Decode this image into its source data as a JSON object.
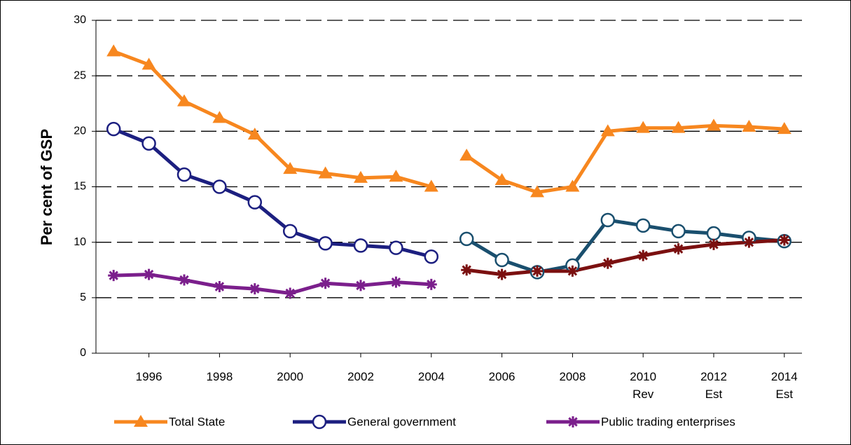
{
  "chart_data": {
    "type": "line",
    "y_label": "Per cent of GSP",
    "x": [
      1995,
      1996,
      1997,
      1998,
      1999,
      2000,
      2001,
      2002,
      2003,
      2004,
      2005,
      2006,
      2007,
      2008,
      2009,
      2010,
      2011,
      2012,
      2013,
      2014
    ],
    "break_after": 2004,
    "xlim": [
      1994.5,
      2014.5
    ],
    "xticks": [
      1996,
      1998,
      2000,
      2002,
      2004,
      2006,
      2008,
      {
        "value": 2010,
        "label": "2010\nRev"
      },
      {
        "value": 2012,
        "label": "2012\nEst"
      },
      {
        "value": 2014,
        "label": "2014\nEst"
      }
    ],
    "ylim": [
      0,
      30
    ],
    "yticks": [
      0,
      5,
      10,
      15,
      20,
      25,
      30
    ],
    "grid": true,
    "legend": "bottom",
    "series": [
      {
        "name": "Total State",
        "color": "#f7871f",
        "color_after": "#f7871f",
        "marker": "triangle",
        "values": [
          27.2,
          26.0,
          22.7,
          21.2,
          19.7,
          16.6,
          16.2,
          15.8,
          15.9,
          15.0,
          17.8,
          15.6,
          14.5,
          15.0,
          20.0,
          20.3,
          20.3,
          20.5,
          20.4,
          20.2
        ]
      },
      {
        "name": "General government",
        "color": "#1c1f80",
        "color_after": "#1a4f6e",
        "marker": "circle",
        "values": [
          20.2,
          18.9,
          16.1,
          15.0,
          13.6,
          11.0,
          9.9,
          9.7,
          9.5,
          8.7,
          10.3,
          8.4,
          7.3,
          7.9,
          12.0,
          11.5,
          11.0,
          10.8,
          10.4,
          10.1
        ]
      },
      {
        "name": "Public trading enterprises",
        "color": "#7b1f8c",
        "color_after": "#7b1010",
        "marker": "star",
        "values": [
          7.0,
          7.1,
          6.6,
          6.0,
          5.8,
          5.4,
          6.3,
          6.1,
          6.4,
          6.2,
          7.5,
          7.1,
          7.4,
          7.4,
          8.1,
          8.8,
          9.4,
          9.8,
          10.0,
          10.2
        ]
      }
    ]
  }
}
